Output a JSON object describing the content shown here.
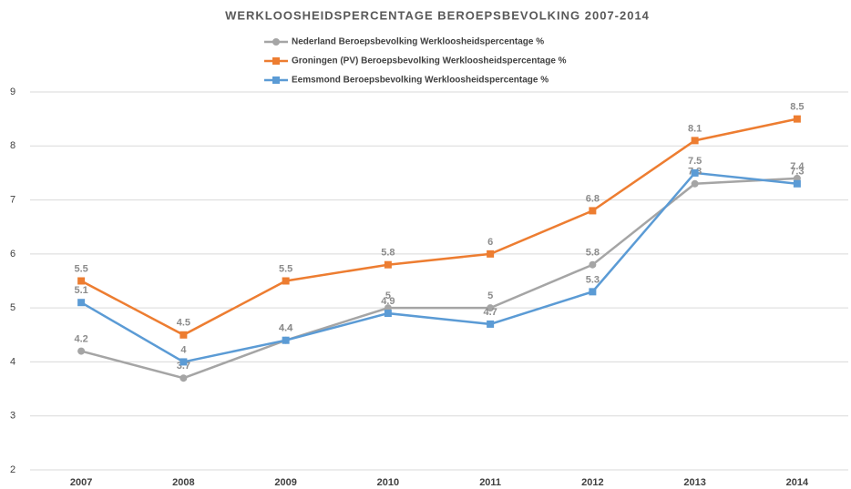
{
  "chart_data": {
    "type": "line",
    "title": "WERKLOOSHEIDSPERCENTAGE BEROEPSBEVOLKING 2007-2014",
    "categories": [
      "2007",
      "2008",
      "2009",
      "2010",
      "2011",
      "2012",
      "2013",
      "2014"
    ],
    "series": [
      {
        "name": "Nederland Beroepsbevolking Werkloosheidspercentage %",
        "color": "#a5a5a5",
        "marker": "circle",
        "values": [
          4.2,
          3.7,
          4.4,
          5,
          5,
          5.8,
          7.3,
          7.4
        ]
      },
      {
        "name": "Groningen (PV) Beroepsbevolking Werkloosheidspercentage %",
        "color": "#ed7d31",
        "marker": "square",
        "values": [
          5.5,
          4.5,
          5.5,
          5.8,
          6,
          6.8,
          8.1,
          8.5
        ]
      },
      {
        "name": "Eemsmond Beroepsbevolking Werkloosheidspercentage %",
        "color": "#5b9bd5",
        "marker": "square",
        "values": [
          5.1,
          4,
          4.4,
          4.9,
          4.7,
          5.3,
          7.5,
          7.3
        ]
      }
    ],
    "ylim": [
      2,
      9
    ],
    "yticks": [
      2,
      3,
      4,
      5,
      6,
      7,
      8,
      9
    ],
    "grid": true
  }
}
